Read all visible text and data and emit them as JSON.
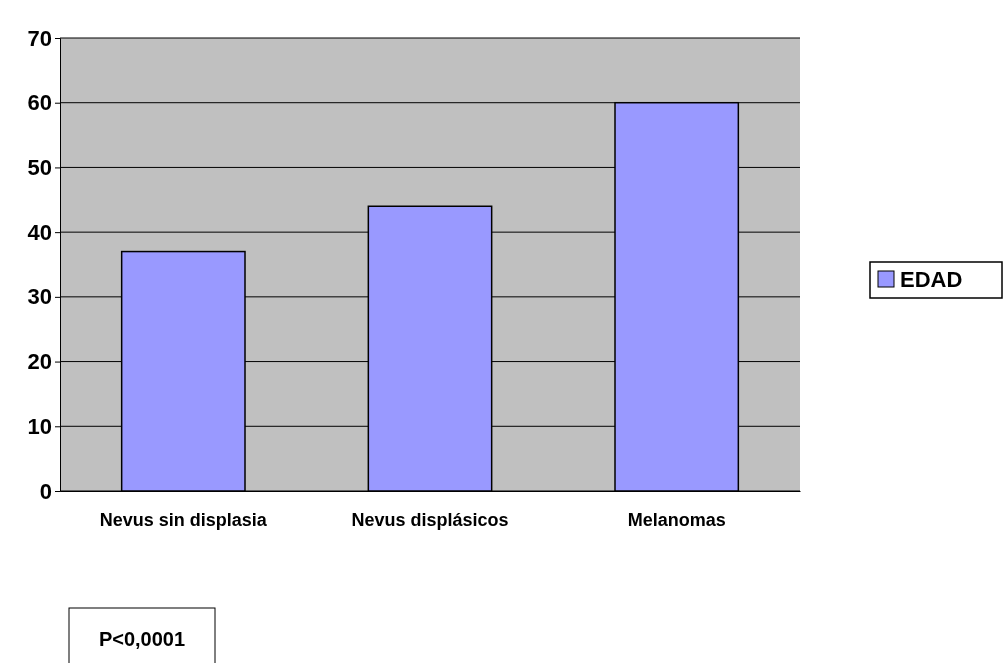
{
  "chart_data": {
    "type": "bar",
    "categories": [
      "Nevus sin displasia",
      "Nevus displásicos",
      "Melanomas"
    ],
    "series": [
      {
        "name": "EDAD",
        "color": "#9999ff",
        "values": [
          37,
          44,
          60
        ]
      }
    ],
    "ylim": [
      0,
      70
    ],
    "yticks": [
      0,
      10,
      20,
      30,
      40,
      50,
      60,
      70
    ],
    "grid": "y",
    "legend": "right",
    "annotations": [
      "P<0,0001"
    ]
  }
}
